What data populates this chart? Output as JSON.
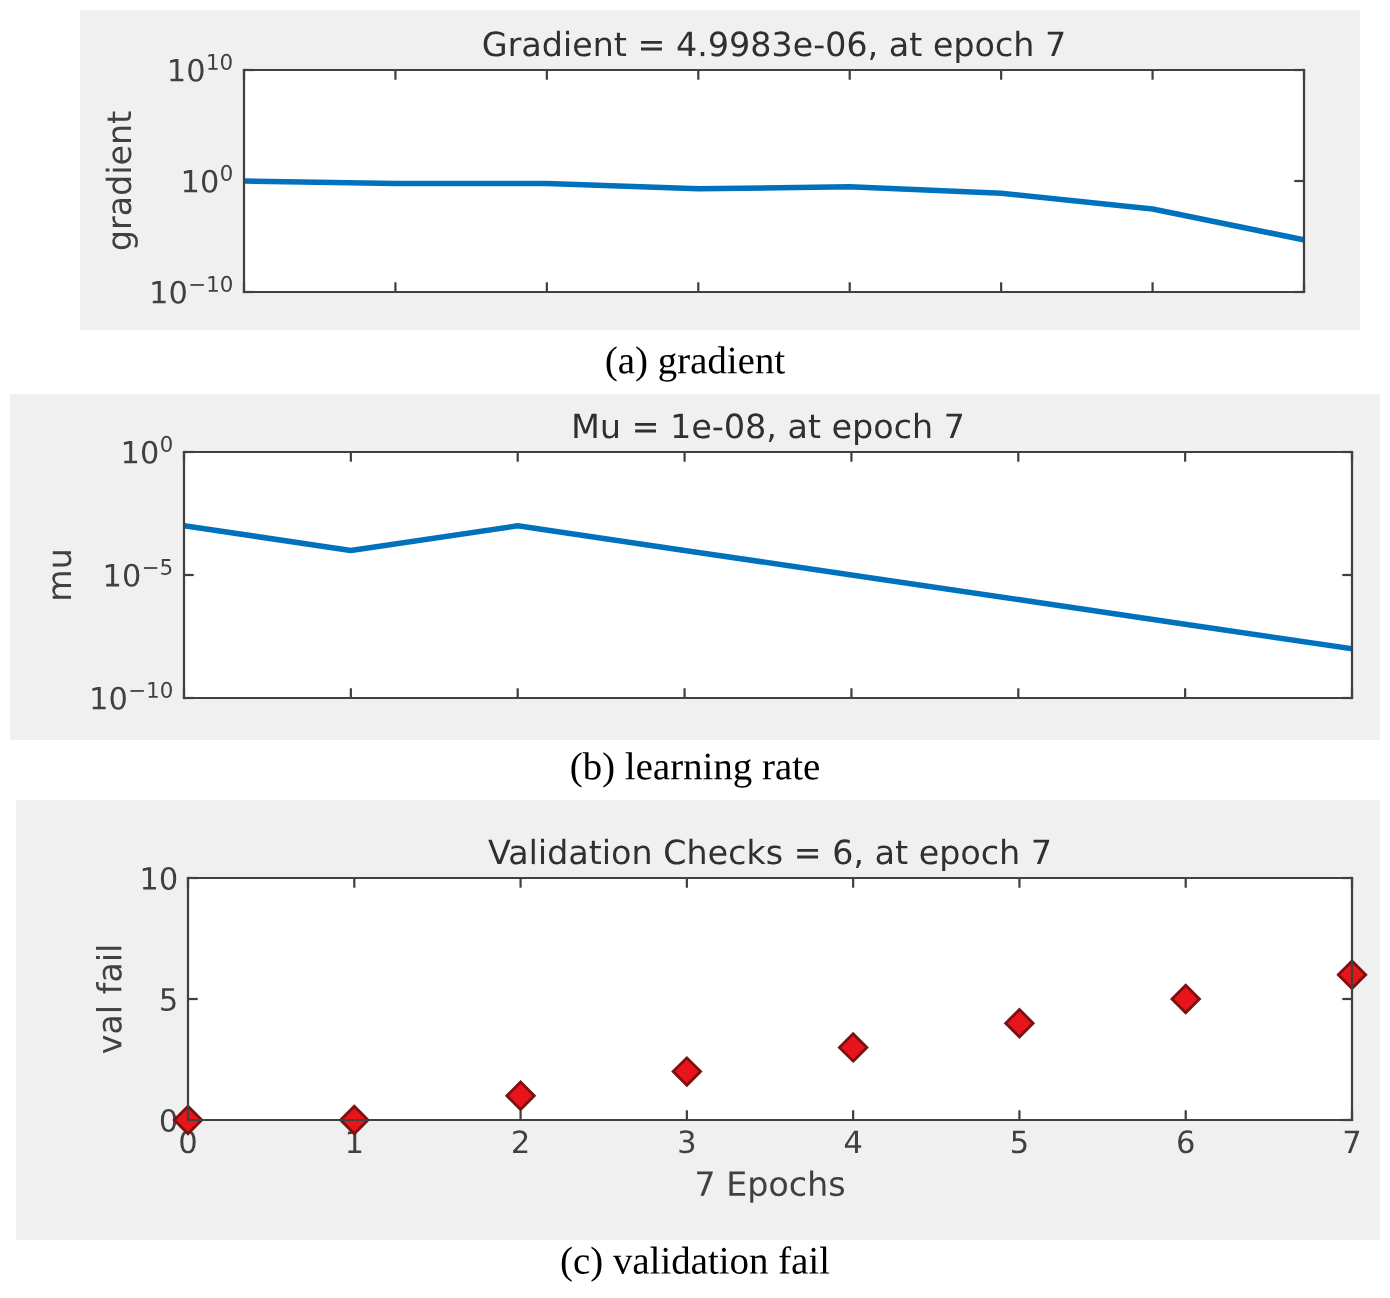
{
  "chart_data": [
    {
      "type": "line",
      "title": "Gradient = 4.9983e-06, at epoch 7",
      "ylabel": "gradient",
      "log": "y",
      "grid": false,
      "marker": "none",
      "line_style": "solid",
      "categories": [
        null,
        null,
        null,
        null,
        null,
        null,
        null,
        null
      ],
      "series": [
        {
          "color": "#0072bd",
          "values": [
            1,
            0.6,
            0.6,
            0.2,
            0.3,
            0.08,
            0.003,
            4.9983e-06
          ]
        }
      ],
      "ylim": [
        1e-10,
        10000000000.0
      ],
      "yticks": [
        {
          "value": 1e-10,
          "label": "10$^{−10}$"
        },
        {
          "value": 1,
          "label": "10$^{0}$"
        },
        {
          "value": 10000000000.0,
          "label": "10$^{10}$"
        }
      ],
      "annotations": [
        "(a) gradient"
      ]
    },
    {
      "type": "line",
      "title": "Mu = 1e-08, at epoch 7",
      "ylabel": "mu",
      "log": "y",
      "grid": false,
      "marker": "none",
      "line_style": "solid",
      "categories": [
        null,
        null,
        null,
        null,
        null,
        null,
        null,
        null
      ],
      "series": [
        {
          "color": "#0072bd",
          "values": [
            0.001,
            0.0001,
            0.001,
            0.0001,
            1e-05,
            1e-06,
            1e-07,
            1e-08
          ]
        }
      ],
      "ylim": [
        1e-10,
        1
      ],
      "yticks": [
        {
          "value": 1e-10,
          "label": "10$^{−10}$"
        },
        {
          "value": 1e-05,
          "label": "10$^{−5}$"
        },
        {
          "value": 1,
          "label": "10$^{0}$"
        }
      ],
      "annotations": [
        "(b) learning rate"
      ]
    },
    {
      "type": "scatter",
      "title": "Validation Checks = 6, at epoch 7",
      "xlabel": "7 Epochs",
      "ylabel": "val fail",
      "grid": false,
      "marker": "diamond",
      "x": [
        0,
        1,
        2,
        3,
        4,
        5,
        6,
        7
      ],
      "series": [
        {
          "color": "#e8141c",
          "values": [
            0,
            0,
            1,
            2,
            3,
            4,
            5,
            6
          ]
        }
      ],
      "xlim": [
        0,
        7
      ],
      "xticks": [
        0,
        1,
        2,
        3,
        4,
        5,
        6,
        7
      ],
      "ylim": [
        0,
        10
      ],
      "yticks": [
        0,
        5,
        10
      ],
      "annotations": [
        "(c) validation fail"
      ]
    }
  ]
}
